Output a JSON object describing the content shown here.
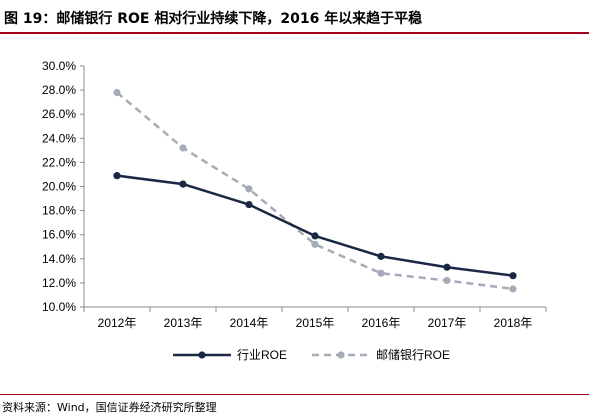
{
  "title": "图 19：邮储银行 ROE 相对行业持续下降，2016 年以来趋于平稳",
  "source": "资料来源：Wind，国信证券经济研究所整理",
  "chart_data": {
    "type": "line",
    "categories": [
      "2012年",
      "2013年",
      "2014年",
      "2015年",
      "2016年",
      "2017年",
      "2018年"
    ],
    "series": [
      {
        "name": "行业ROE",
        "values": [
          20.9,
          20.2,
          18.5,
          15.9,
          14.2,
          13.3,
          12.6
        ],
        "color": "#1a2745",
        "style": "solid"
      },
      {
        "name": "邮储银行ROE",
        "values": [
          27.8,
          23.2,
          19.8,
          15.2,
          12.8,
          12.2,
          11.5
        ],
        "color": "#a4acb9",
        "style": "dashed"
      }
    ],
    "ylim": [
      10,
      30
    ],
    "yticks": [
      "10.0%",
      "12.0%",
      "14.0%",
      "16.0%",
      "18.0%",
      "20.0%",
      "22.0%",
      "24.0%",
      "26.0%",
      "28.0%",
      "30.0%"
    ],
    "grid": false,
    "legend": "bottom-center"
  }
}
